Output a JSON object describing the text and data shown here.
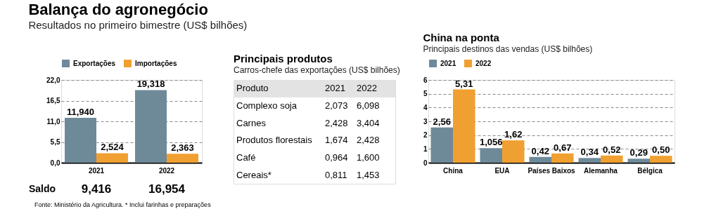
{
  "chart_data": [
    {
      "type": "bar",
      "title": "Balança do agronegócio",
      "subtitle": "Resultados no primeiro bimestre (US$ bilhões)",
      "categories": [
        "2021",
        "2022"
      ],
      "series": [
        {
          "name": "Exportações",
          "color": "#6e8a99",
          "values": [
            11.94,
            19.318
          ],
          "value_labels": [
            "11,940",
            "19,318"
          ]
        },
        {
          "name": "Importações",
          "color": "#f0a030",
          "values": [
            2.524,
            2.363
          ],
          "value_labels": [
            "2,524",
            "2,363"
          ]
        }
      ],
      "ylim": [
        0,
        22
      ],
      "yticks": [
        {
          "value": 0,
          "label": "0,0"
        },
        {
          "value": 5.5,
          "label": "5,5"
        },
        {
          "value": 11,
          "label": "11,0"
        },
        {
          "value": 16.5,
          "label": "16,5"
        },
        {
          "value": 22,
          "label": "22,0"
        }
      ],
      "grid": "y",
      "legend": "top",
      "annotations": [
        "Saldo",
        "9,416",
        "16,954",
        "Fonte: Ministério da Agricultura. * Inclui farinhas e preparações"
      ]
    },
    {
      "type": "other",
      "title": "Principais produtos",
      "subtitle": "Carros-chefe das exportações (US$ bilhões)",
      "annotations": [
        "Produto",
        "2021",
        "2022",
        "Complexo soja",
        "2,073",
        "6,098",
        "Carnes",
        "2,428",
        "3,404",
        "Produtos florestais",
        "1,674",
        "2,428",
        "Café",
        "0,964",
        "1,600",
        "Cereais*",
        "0,811",
        "1,453"
      ]
    },
    {
      "type": "bar",
      "title": "China na ponta",
      "subtitle": "Principais destinos das vendas (US$ bilhões)",
      "categories": [
        "China",
        "EUA",
        "Países Baixos",
        "Alemanha",
        "Bélgica"
      ],
      "series": [
        {
          "name": "2021",
          "color": "#6e8a99",
          "values": [
            2.56,
            1.056,
            0.42,
            0.34,
            0.29
          ],
          "value_labels": [
            "2,56",
            "1,056",
            "0,42",
            "0,34",
            "0,29"
          ]
        },
        {
          "name": "2022",
          "color": "#f0a030",
          "values": [
            5.31,
            1.62,
            0.67,
            0.52,
            0.5
          ],
          "value_labels": [
            "5,31",
            "1,62",
            "0,67",
            "0,52",
            "0,50"
          ]
        }
      ],
      "ylim": [
        0,
        6
      ],
      "yticks": [
        0,
        1,
        2,
        3,
        4,
        5,
        6
      ],
      "grid": "y",
      "legend": "top"
    }
  ]
}
